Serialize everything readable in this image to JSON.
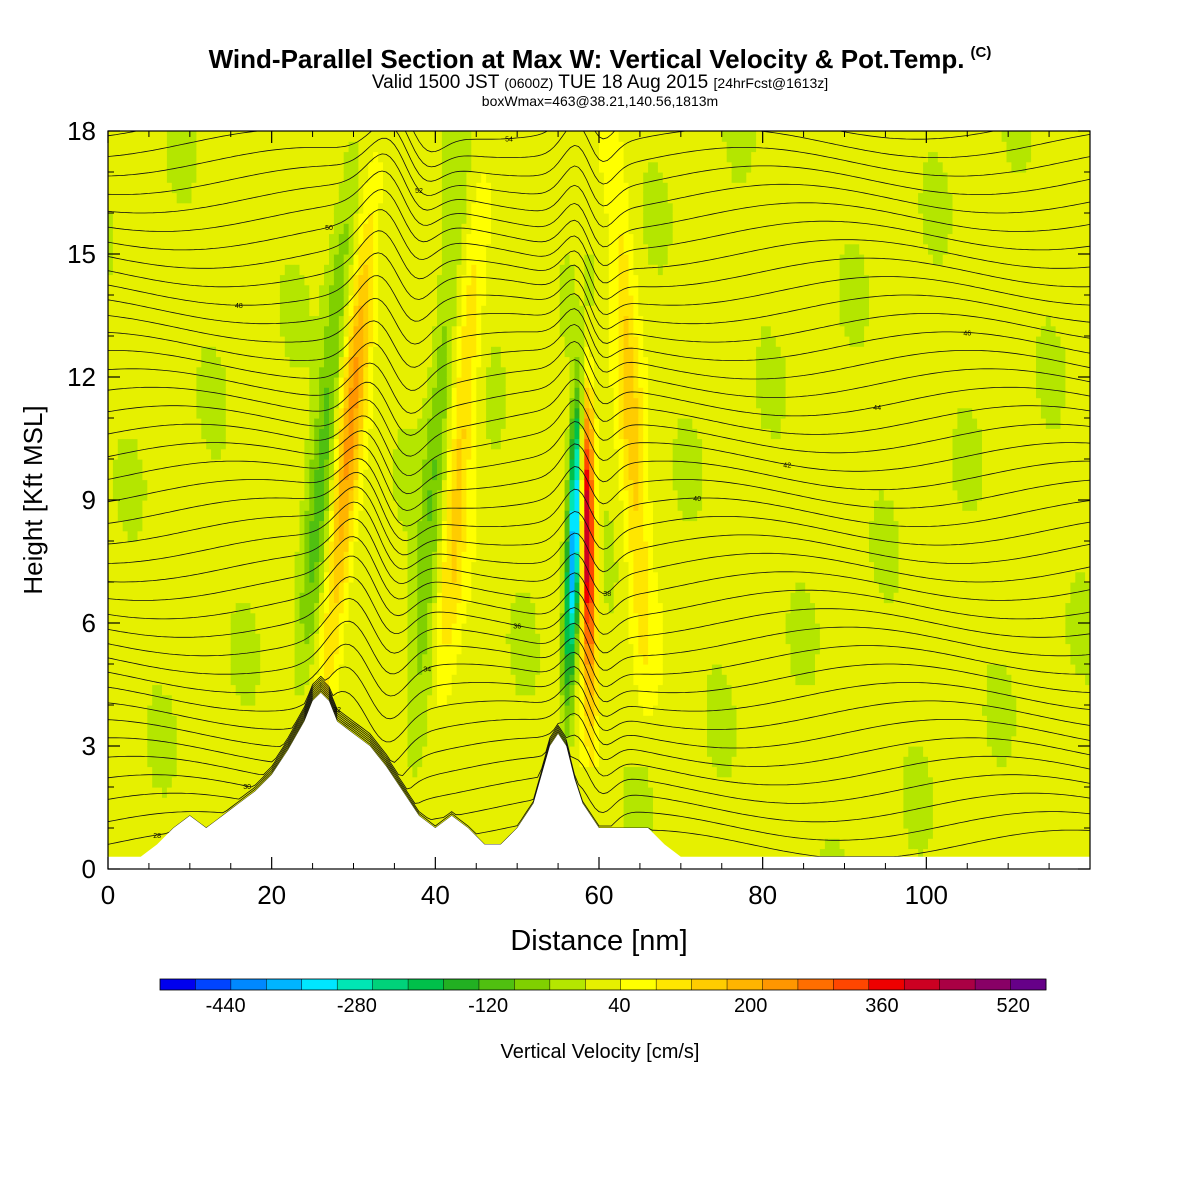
{
  "header": {
    "title": "Wind-Parallel Section at Max W: Vertical Velocity & Pot.Temp.",
    "copyright_mark": "(C)",
    "valid_prefix": "Valid 1500 JST",
    "valid_utc": "(0600Z)",
    "valid_suffix": "TUE 18 Aug 2015",
    "forecast_info": "[24hrFcst@1613z]",
    "box_info": "boxWmax=463@38.21,140.56,1813m"
  },
  "chart_data": {
    "type": "heatmap",
    "xlabel": "Distance [nm]",
    "ylabel": "Height [Kft MSL]",
    "xlim": [
      0,
      120
    ],
    "ylim": [
      0,
      18
    ],
    "x_ticks": [
      0,
      20,
      40,
      60,
      80,
      100
    ],
    "y_ticks": [
      0,
      3,
      6,
      9,
      12,
      15,
      18
    ],
    "colorbar": {
      "label": "Vertical Velocity [cm/s]",
      "tick_labels": [
        "-440",
        "-280",
        "-120",
        "40",
        "200",
        "360",
        "520"
      ],
      "tick_values": [
        -440,
        -280,
        -120,
        40,
        200,
        360,
        520
      ],
      "range": [
        -520,
        560
      ],
      "colors": [
        "#0000ee",
        "#0044ff",
        "#0088ff",
        "#00b4ff",
        "#00e6ff",
        "#00e6b4",
        "#00d27a",
        "#00c04a",
        "#22b022",
        "#50c010",
        "#80d000",
        "#b4e600",
        "#e6f000",
        "#ffff00",
        "#ffe600",
        "#ffcc00",
        "#ffb400",
        "#ff9600",
        "#ff6e00",
        "#ff4600",
        "#ee0000",
        "#cc0022",
        "#aa0044",
        "#880066",
        "#660088"
      ]
    },
    "terrain_kft": {
      "x_nm": [
        0,
        4,
        6,
        8,
        10,
        12,
        14,
        16,
        18,
        20,
        22,
        24,
        25,
        26,
        27,
        28,
        30,
        32,
        34,
        36,
        38,
        40,
        42,
        44,
        46,
        48,
        50,
        52,
        53,
        54,
        55,
        56,
        57,
        58,
        60,
        62,
        64,
        66,
        68,
        70,
        72,
        80,
        100,
        120
      ],
      "height": [
        0.3,
        0.3,
        0.6,
        1.0,
        1.3,
        1.0,
        1.3,
        1.6,
        1.9,
        2.3,
        2.9,
        3.6,
        4.1,
        4.3,
        4.1,
        3.6,
        3.3,
        3.0,
        2.5,
        1.9,
        1.3,
        1.0,
        1.3,
        1.0,
        0.6,
        0.6,
        1.0,
        1.6,
        2.3,
        3.0,
        3.3,
        3.0,
        2.2,
        1.6,
        1.0,
        1.0,
        1.0,
        1.0,
        0.6,
        0.3,
        0.3,
        0.3,
        0.3,
        0.3
      ]
    },
    "vertical_velocity_features": [
      {
        "x_bottom_nm": 26,
        "x_top_nm": 33,
        "z_bottom_kft": 3,
        "z_top_kft": 18,
        "peak_cm_s": 200
      },
      {
        "x_bottom_nm": 23,
        "x_top_nm": 30,
        "z_bottom_kft": 3,
        "z_top_kft": 18,
        "peak_cm_s": -120
      },
      {
        "x_bottom_nm": 40,
        "x_top_nm": 46,
        "z_bottom_kft": 2,
        "z_top_kft": 18,
        "peak_cm_s": 120
      },
      {
        "x_bottom_nm": 37,
        "x_top_nm": 43,
        "z_bottom_kft": 2,
        "z_top_kft": 18,
        "peak_cm_s": -100
      },
      {
        "x_bottom_nm": 56,
        "x_top_nm": 59,
        "z_bottom_kft": 3,
        "z_top_kft": 18,
        "peak_cm_s": -440
      },
      {
        "x_bottom_nm": 59,
        "x_top_nm": 58,
        "z_bottom_kft": 3,
        "z_top_kft": 15,
        "peak_cm_s": 463
      },
      {
        "x_bottom_nm": 66,
        "x_top_nm": 62,
        "z_bottom_kft": 3,
        "z_top_kft": 18,
        "peak_cm_s": 120
      }
    ],
    "pot_temp_contour_labels": [
      "28",
      "30",
      "32",
      "34",
      "36",
      "38",
      "40",
      "42",
      "44",
      "46",
      "48",
      "50",
      "52",
      "54",
      "56",
      "58",
      "60"
    ]
  }
}
